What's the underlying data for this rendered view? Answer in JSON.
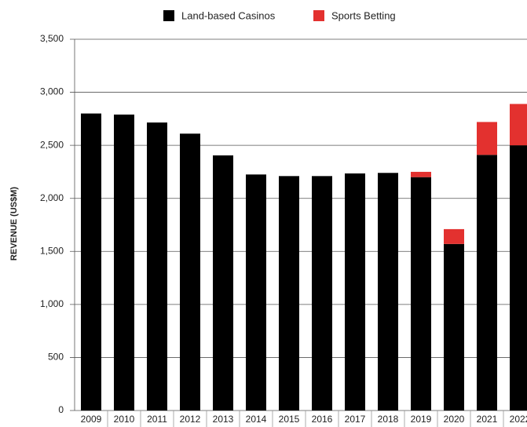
{
  "chart_data": {
    "type": "stacked_bar",
    "y_label": "REVENUE (US$M)",
    "categories": [
      "2009",
      "2010",
      "2011",
      "2012",
      "2013",
      "2014",
      "2015",
      "2016",
      "2017",
      "2018",
      "2019",
      "2020",
      "2021",
      "2022"
    ],
    "series": [
      {
        "name": "Land-based Casinos",
        "color": "#000000",
        "values": [
          2800,
          2790,
          2715,
          2610,
          2405,
          2225,
          2210,
          2210,
          2235,
          2240,
          2200,
          1570,
          2410,
          2500
        ]
      },
      {
        "name": "Sports Betting",
        "color": "#e3312f",
        "values": [
          0,
          0,
          0,
          0,
          0,
          0,
          0,
          0,
          0,
          0,
          50,
          140,
          310,
          390
        ]
      }
    ],
    "ylim": [
      0,
      3500
    ],
    "yticks": [
      0,
      500,
      {
        "value": 1000,
        "label": "1,000"
      },
      {
        "value": 1500,
        "label": "1,500"
      },
      {
        "value": 2000,
        "label": "2,000"
      },
      {
        "value": 2500,
        "label": "2,500"
      },
      {
        "value": 3000,
        "label": "3,000"
      },
      {
        "value": 3500,
        "label": "3,500"
      }
    ],
    "grid": true,
    "legend": "top"
  }
}
